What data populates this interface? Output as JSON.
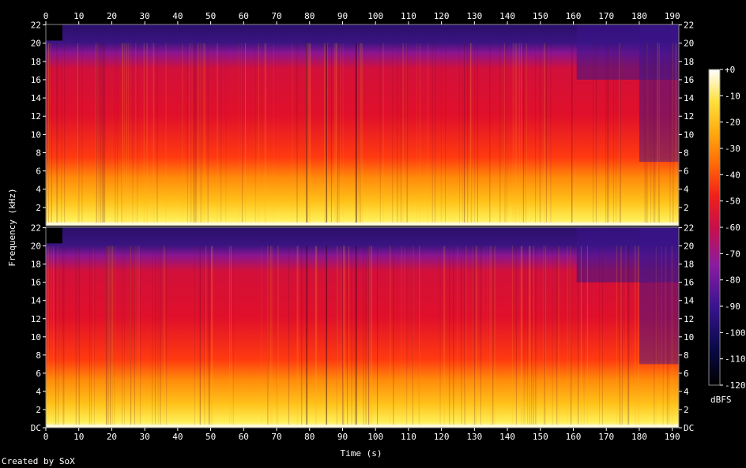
{
  "chart_data": {
    "type": "heatmap",
    "title": "",
    "xlabel": "Time (s)",
    "ylabel": "Frequency (kHz)",
    "xlim": [
      0,
      192
    ],
    "ylim": [
      0,
      22.05
    ],
    "x_ticks": [
      "0",
      "10",
      "20",
      "30",
      "40",
      "50",
      "60",
      "70",
      "80",
      "90",
      "100",
      "110",
      "120",
      "130",
      "140",
      "150",
      "160",
      "170",
      "180",
      "190"
    ],
    "y_ticks": [
      "DC",
      "2",
      "4",
      "6",
      "8",
      "10",
      "12",
      "14",
      "16",
      "18",
      "20",
      "22"
    ],
    "y_ticks_top": [
      "2",
      "4",
      "6",
      "8",
      "10",
      "12",
      "14",
      "16",
      "18",
      "20",
      "22"
    ],
    "colorbar": {
      "label": "dBFS",
      "range": [
        -120,
        0
      ],
      "ticks": [
        "+0",
        "-10",
        "-20",
        "-30",
        "-40",
        "-50",
        "-60",
        "-70",
        "-80",
        "-90",
        "-100",
        "-110",
        "-120"
      ]
    },
    "channels": [
      {
        "channel": 1,
        "note": "upper panel"
      },
      {
        "channel": 2,
        "note": "lower panel"
      }
    ]
  },
  "footer": {
    "credit": "Created by SoX"
  }
}
